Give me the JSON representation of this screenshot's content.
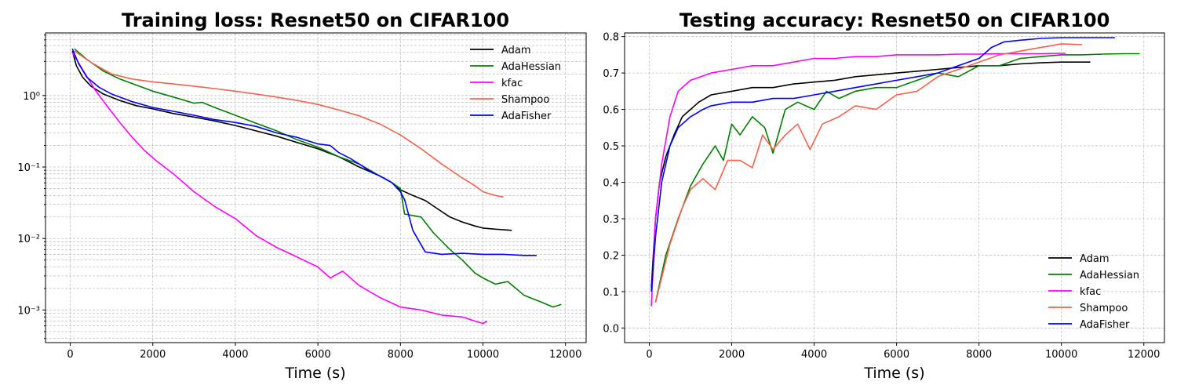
{
  "chart_data": [
    {
      "type": "line",
      "title": "Training loss: Resnet50 on CIFAR100",
      "xlabel": "Time (s)",
      "ylabel": "",
      "yscale": "log",
      "xlim": [
        -600,
        12500
      ],
      "ylim": [
        0.00035,
        7.5
      ],
      "xticks": [
        0,
        2000,
        4000,
        6000,
        8000,
        10000,
        12000
      ],
      "xtick_labels": [
        "0",
        "2000",
        "4000",
        "6000",
        "8000",
        "10000",
        "12000"
      ],
      "yticks": [
        0.001,
        0.01,
        0.1,
        1
      ],
      "ytick_labels": [
        "10⁻³",
        "10⁻²",
        "10⁻¹",
        "10⁰"
      ],
      "grid": true,
      "legend_position": "top-right",
      "series": [
        {
          "name": "Adam",
          "color": "#000000",
          "x": [
            50,
            150,
            300,
            500,
            800,
            1200,
            1600,
            2000,
            2500,
            3000,
            3500,
            4000,
            4500,
            5000,
            5500,
            6000,
            6500,
            7000,
            7500,
            7800,
            8000,
            8300,
            8600,
            8900,
            9200,
            9500,
            9800,
            10000,
            10300,
            10700
          ],
          "y": [
            4.2,
            2.6,
            1.8,
            1.35,
            1.05,
            0.85,
            0.72,
            0.65,
            0.56,
            0.5,
            0.44,
            0.38,
            0.32,
            0.27,
            0.22,
            0.18,
            0.14,
            0.1,
            0.075,
            0.06,
            0.048,
            0.04,
            0.034,
            0.026,
            0.02,
            0.017,
            0.015,
            0.014,
            0.0135,
            0.013
          ]
        },
        {
          "name": "AdaHessian",
          "color": "#008000",
          "x": [
            100,
            400,
            800,
            1200,
            1600,
            2000,
            2500,
            3000,
            3200,
            3500,
            4000,
            4500,
            5000,
            5500,
            6000,
            6500,
            7000,
            7500,
            7800,
            8000,
            8100,
            8500,
            8800,
            9200,
            9500,
            9800,
            10000,
            10300,
            10600,
            11000,
            11400,
            11700,
            11900
          ],
          "y": [
            4.5,
            3.2,
            2.2,
            1.7,
            1.4,
            1.15,
            0.95,
            0.78,
            0.8,
            0.68,
            0.53,
            0.41,
            0.32,
            0.24,
            0.19,
            0.14,
            0.11,
            0.075,
            0.06,
            0.05,
            0.022,
            0.02,
            0.012,
            0.007,
            0.005,
            0.0033,
            0.0028,
            0.0023,
            0.0025,
            0.0016,
            0.0013,
            0.0011,
            0.0012
          ]
        },
        {
          "name": "kfac",
          "color": "#ff00ff",
          "x": [
            50,
            300,
            600,
            900,
            1200,
            1500,
            1800,
            2100,
            2500,
            3000,
            3500,
            4000,
            4500,
            5000,
            5500,
            6000,
            6300,
            6600,
            7000,
            7500,
            8000,
            8500,
            9000,
            9500,
            9800,
            10000,
            10100
          ],
          "y": [
            4.0,
            2.3,
            1.2,
            0.7,
            0.42,
            0.26,
            0.17,
            0.12,
            0.08,
            0.045,
            0.028,
            0.019,
            0.011,
            0.0075,
            0.0055,
            0.004,
            0.0028,
            0.0035,
            0.0022,
            0.0015,
            0.0011,
            0.001,
            0.00085,
            0.0008,
            0.0007,
            0.00065,
            0.0007
          ]
        },
        {
          "name": "Shampoo",
          "color": "#f4634a",
          "x": [
            100,
            500,
            1000,
            1500,
            2000,
            2500,
            3000,
            3500,
            4000,
            4500,
            5000,
            5500,
            6000,
            6500,
            7000,
            7500,
            8000,
            8500,
            9000,
            9500,
            9800,
            10000,
            10300,
            10500
          ],
          "y": [
            4.2,
            2.9,
            2.0,
            1.7,
            1.55,
            1.45,
            1.35,
            1.25,
            1.15,
            1.05,
            0.95,
            0.85,
            0.75,
            0.63,
            0.52,
            0.4,
            0.28,
            0.18,
            0.11,
            0.07,
            0.055,
            0.045,
            0.04,
            0.038
          ]
        },
        {
          "name": "AdaFisher",
          "color": "#0000ff",
          "x": [
            50,
            200,
            400,
            700,
            1000,
            1500,
            2000,
            2500,
            3000,
            3500,
            4000,
            4500,
            5000,
            5500,
            6000,
            6300,
            6500,
            6800,
            7000,
            7300,
            7600,
            7800,
            8000,
            8100,
            8300,
            8600,
            9000,
            9500,
            10000,
            10500,
            11000,
            11300
          ],
          "y": [
            4.5,
            2.8,
            1.8,
            1.3,
            1.05,
            0.82,
            0.68,
            0.6,
            0.53,
            0.46,
            0.42,
            0.37,
            0.3,
            0.26,
            0.21,
            0.2,
            0.16,
            0.13,
            0.11,
            0.085,
            0.07,
            0.06,
            0.045,
            0.035,
            0.013,
            0.0065,
            0.006,
            0.0062,
            0.006,
            0.006,
            0.0058,
            0.0058
          ]
        }
      ]
    },
    {
      "type": "line",
      "title": "Testing accuracy: Resnet50 on CIFAR100",
      "xlabel": "Time (s)",
      "ylabel": "",
      "yscale": "linear",
      "xlim": [
        -600,
        12500
      ],
      "ylim": [
        -0.04,
        0.81
      ],
      "xticks": [
        0,
        2000,
        4000,
        6000,
        8000,
        10000,
        12000
      ],
      "xtick_labels": [
        "0",
        "2000",
        "4000",
        "6000",
        "8000",
        "10000",
        "12000"
      ],
      "yticks": [
        0.0,
        0.1,
        0.2,
        0.3,
        0.4,
        0.5,
        0.6,
        0.7,
        0.8
      ],
      "ytick_labels": [
        "0.0",
        "0.1",
        "0.2",
        "0.3",
        "0.4",
        "0.5",
        "0.6",
        "0.7",
        "0.8"
      ],
      "grid": true,
      "legend_position": "bottom-right",
      "series": [
        {
          "name": "Adam",
          "color": "#000000",
          "x": [
            50,
            150,
            250,
            400,
            600,
            800,
            1000,
            1200,
            1500,
            2000,
            2500,
            3000,
            3500,
            4000,
            4500,
            5000,
            5500,
            6000,
            6500,
            7000,
            7500,
            8000,
            8500,
            9000,
            9500,
            10000,
            10500,
            10700
          ],
          "y": [
            0.11,
            0.3,
            0.4,
            0.47,
            0.53,
            0.58,
            0.6,
            0.62,
            0.64,
            0.65,
            0.66,
            0.66,
            0.67,
            0.675,
            0.68,
            0.69,
            0.695,
            0.7,
            0.705,
            0.71,
            0.715,
            0.72,
            0.72,
            0.725,
            0.728,
            0.73,
            0.73,
            0.73
          ]
        },
        {
          "name": "AdaHessian",
          "color": "#008000",
          "x": [
            150,
            400,
            700,
            1000,
            1300,
            1600,
            1800,
            2000,
            2200,
            2500,
            2800,
            3000,
            3300,
            3600,
            4000,
            4300,
            4600,
            5000,
            5500,
            6000,
            6500,
            7000,
            7500,
            8000,
            8500,
            9000,
            9500,
            10000,
            10500,
            11000,
            11500,
            11900
          ],
          "y": [
            0.07,
            0.2,
            0.3,
            0.39,
            0.45,
            0.5,
            0.46,
            0.56,
            0.53,
            0.58,
            0.55,
            0.48,
            0.6,
            0.62,
            0.6,
            0.65,
            0.63,
            0.65,
            0.66,
            0.66,
            0.68,
            0.7,
            0.69,
            0.72,
            0.72,
            0.74,
            0.745,
            0.75,
            0.75,
            0.752,
            0.753,
            0.753
          ]
        },
        {
          "name": "kfac",
          "color": "#ff00ff",
          "x": [
            50,
            150,
            300,
            500,
            700,
            1000,
            1500,
            2000,
            2500,
            3000,
            3500,
            4000,
            4500,
            5000,
            5500,
            6000,
            6500,
            7000,
            7500,
            8000,
            8500,
            9000,
            9500,
            10000,
            10100
          ],
          "y": [
            0.06,
            0.3,
            0.45,
            0.58,
            0.65,
            0.68,
            0.7,
            0.71,
            0.72,
            0.72,
            0.73,
            0.74,
            0.74,
            0.745,
            0.745,
            0.75,
            0.75,
            0.75,
            0.752,
            0.752,
            0.753,
            0.753,
            0.753,
            0.754,
            0.754
          ]
        },
        {
          "name": "Shampoo",
          "color": "#f4634a",
          "x": [
            150,
            500,
            800,
            1000,
            1300,
            1600,
            1900,
            2200,
            2500,
            2750,
            3000,
            3300,
            3600,
            3900,
            4200,
            4600,
            5000,
            5500,
            6000,
            6500,
            7000,
            7500,
            8000,
            8500,
            9000,
            9500,
            10000,
            10500
          ],
          "y": [
            0.07,
            0.23,
            0.33,
            0.38,
            0.41,
            0.38,
            0.46,
            0.46,
            0.44,
            0.53,
            0.49,
            0.53,
            0.56,
            0.49,
            0.56,
            0.58,
            0.61,
            0.6,
            0.64,
            0.65,
            0.69,
            0.71,
            0.73,
            0.75,
            0.76,
            0.77,
            0.78,
            0.778
          ]
        },
        {
          "name": "AdaFisher",
          "color": "#0000ff",
          "x": [
            50,
            150,
            300,
            500,
            700,
            1000,
            1300,
            1500,
            2000,
            2500,
            3000,
            3500,
            4000,
            4500,
            5000,
            5500,
            6000,
            6500,
            7000,
            7500,
            8000,
            8300,
            8600,
            9000,
            9500,
            10000,
            10500,
            11000,
            11300
          ],
          "y": [
            0.1,
            0.25,
            0.4,
            0.5,
            0.55,
            0.58,
            0.6,
            0.61,
            0.62,
            0.62,
            0.63,
            0.63,
            0.64,
            0.65,
            0.66,
            0.67,
            0.68,
            0.69,
            0.7,
            0.72,
            0.74,
            0.77,
            0.785,
            0.79,
            0.795,
            0.797,
            0.797,
            0.797,
            0.797
          ]
        }
      ]
    }
  ]
}
